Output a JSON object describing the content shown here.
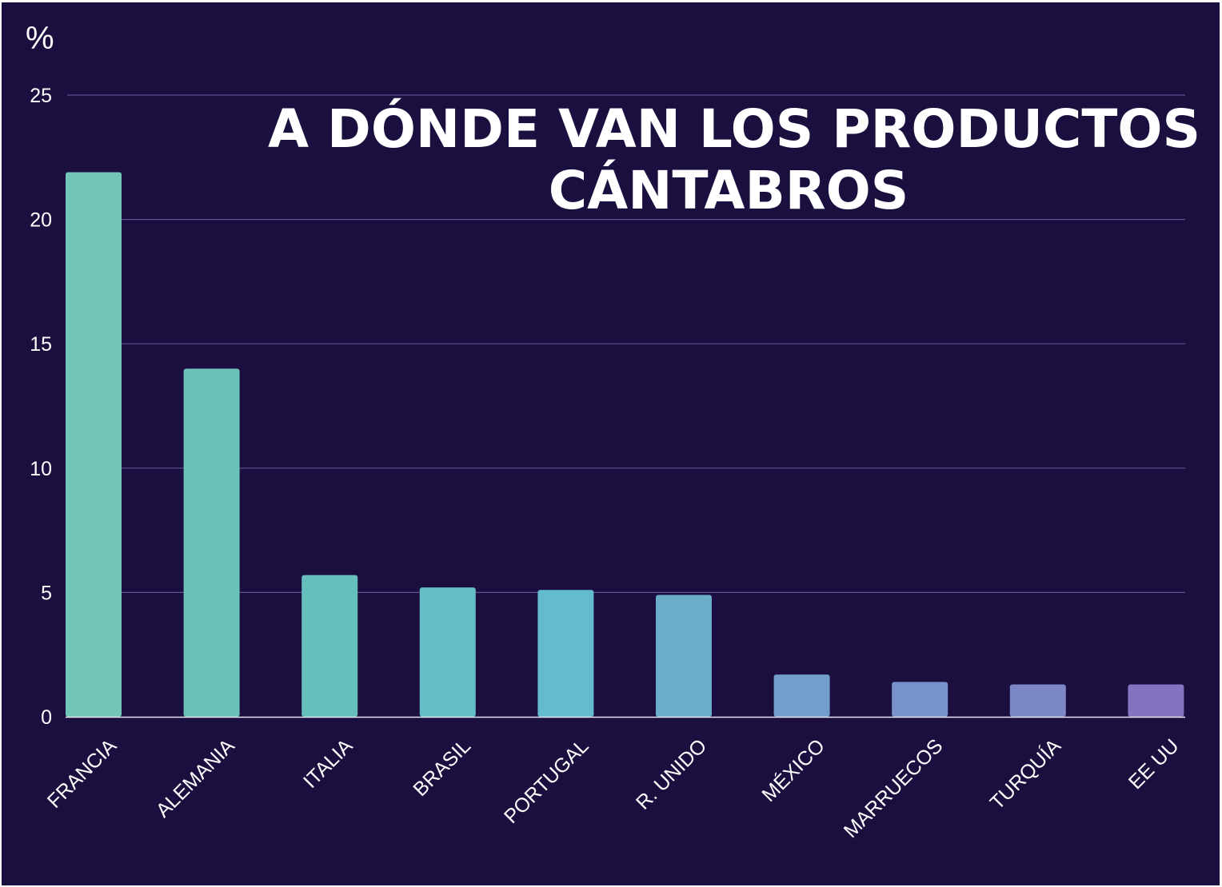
{
  "chart_data": {
    "type": "bar",
    "title_lines": [
      "A DÓNDE VAN LOS PRODUCTOS",
      "CÁNTABROS"
    ],
    "ylabel": "%",
    "xlabel": "",
    "categories": [
      "FRANCIA",
      "ALEMANIA",
      "ITALIA",
      "BRASIL",
      "PORTUGAL",
      "R. UNIDO",
      "MÉXICO",
      "MARRUECOS",
      "TURQUÍA",
      "EE UU"
    ],
    "values": [
      21.9,
      14.0,
      5.7,
      5.2,
      5.1,
      4.9,
      1.7,
      1.4,
      1.3,
      1.3
    ],
    "ylim": [
      0,
      25
    ],
    "yticks": [
      "0",
      "5",
      "10",
      "15",
      "20",
      "25"
    ],
    "grid": true,
    "legend": "none",
    "colors": {
      "background": "#1b0f3f",
      "gridline": "#5a5490",
      "text": "#ffffff",
      "bars": [
        "#72c6b9",
        "#6cc2b8",
        "#66bfbd",
        "#63bec7",
        "#62bccb",
        "#6aaec9",
        "#739ecb",
        "#7893cb",
        "#7b87c6",
        "#8373c1"
      ]
    }
  }
}
